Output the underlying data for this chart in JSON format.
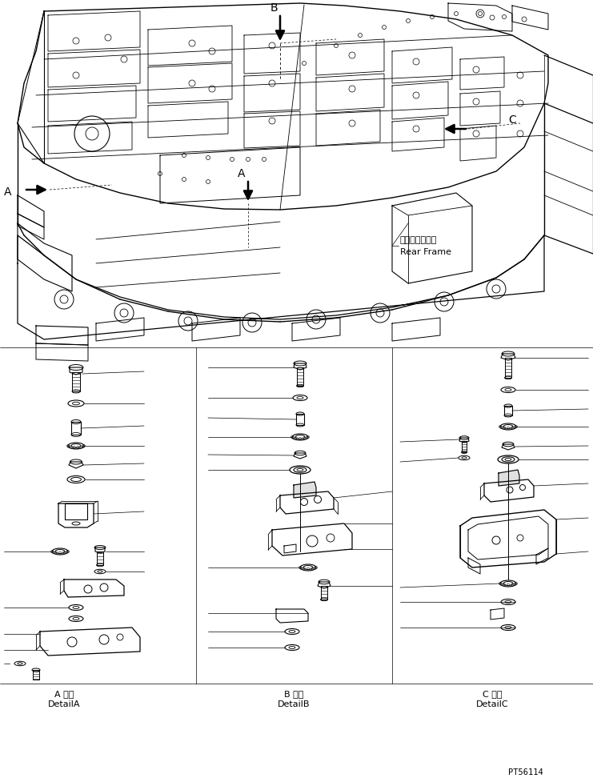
{
  "background_color": "#ffffff",
  "line_color": "#000000",
  "text_color": "#000000",
  "label_A_jp": "A 詳細",
  "label_A_en": "DetailA",
  "label_B_jp": "B 詳細",
  "label_B_en": "DetailB",
  "label_C_jp": "C 詳細",
  "label_C_en": "DetailC",
  "rear_frame_jp": "リヤーフレーム",
  "rear_frame_en": "Rear Frame",
  "part_number": "PT56114",
  "figsize": [
    7.41,
    9.78
  ],
  "dpi": 100
}
